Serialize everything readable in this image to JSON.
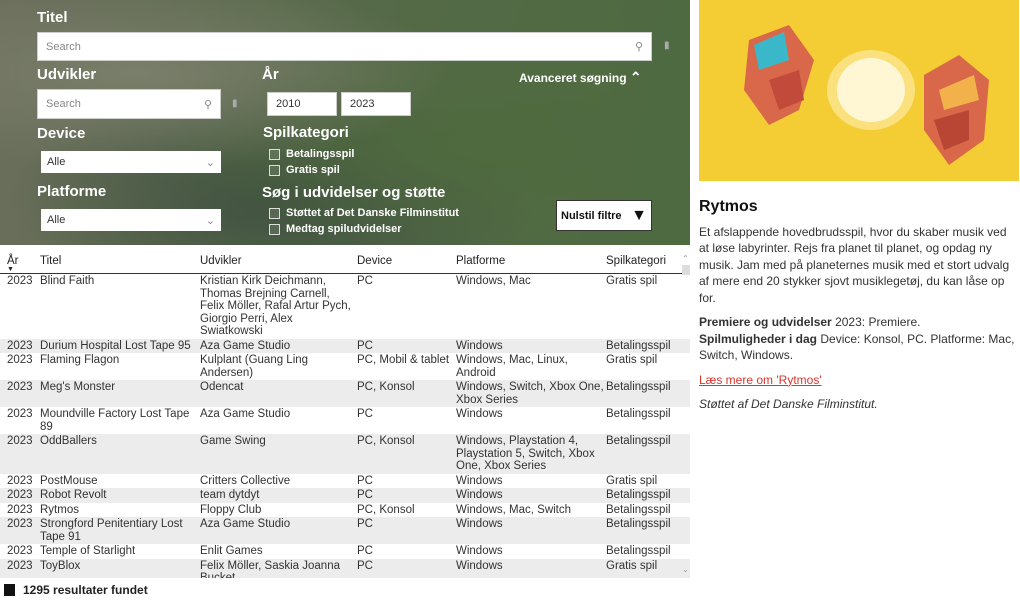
{
  "filters": {
    "title_label": "Titel",
    "title_placeholder": "Search",
    "developer_label": "Udvikler",
    "developer_placeholder": "Search",
    "year_label": "År",
    "year_from": "2010",
    "year_to": "2023",
    "advanced_label": "Avanceret søgning",
    "device_label": "Device",
    "device_value": "Alle",
    "platform_label": "Platforme",
    "platform_value": "Alle",
    "category_label": "Spilkategori",
    "category_options": [
      "Betalingsspil",
      "Gratis spil"
    ],
    "extras_label": "Søg i udvidelser og støtte",
    "extras_options": [
      "Støttet af Det Danske Filminstitut",
      "Medtag spiludvidelser"
    ],
    "reset_label": "Nulstil filtre"
  },
  "table": {
    "headers": [
      "År",
      "Titel",
      "Udvikler",
      "Device",
      "Platforme",
      "Spilkategori"
    ],
    "rows": [
      [
        "2023",
        "Blind Faith",
        "Kristian Kirk Deichmann, Thomas Brejning Carnell, Felix Möller, Rafal Artur Pych, Giorgio Perri, Alex Swiatkowski",
        "PC",
        "Windows, Mac",
        "Gratis spil"
      ],
      [
        "2023",
        "Durium Hospital Lost Tape 95",
        "Aza Game Studio",
        "PC",
        "Windows",
        "Betalingsspil"
      ],
      [
        "2023",
        "Flaming Flagon",
        "Kulplant (Guang Ling Andersen)",
        "PC, Mobil & tablet",
        "Windows, Mac, Linux, Android",
        "Gratis spil"
      ],
      [
        "2023",
        "Meg's Monster",
        "Odencat",
        "PC, Konsol",
        "Windows, Switch, Xbox One, Xbox Series",
        "Betalingsspil"
      ],
      [
        "2023",
        "Moundville Factory Lost Tape 89",
        "Aza Game Studio",
        "PC",
        "Windows",
        "Betalingsspil"
      ],
      [
        "2023",
        "OddBallers",
        "Game Swing",
        "PC, Konsol",
        "Windows, Playstation 4, Playstation 5, Switch, Xbox One, Xbox Series",
        "Betalingsspil"
      ],
      [
        "2023",
        "PostMouse",
        "Critters Collective",
        "PC",
        "Windows",
        "Gratis spil"
      ],
      [
        "2023",
        "Robot Revolt",
        "team dytdyt",
        "PC",
        "Windows",
        "Betalingsspil"
      ],
      [
        "2023",
        "Rytmos",
        "Floppy Club",
        "PC, Konsol",
        "Windows, Mac, Switch",
        "Betalingsspil"
      ],
      [
        "2023",
        "Strongford Penitentiary Lost Tape 91",
        "Aza Game Studio",
        "PC",
        "Windows",
        "Betalingsspil"
      ],
      [
        "2023",
        "Temple of Starlight",
        "Enlit Games",
        "PC",
        "Windows",
        "Betalingsspil"
      ],
      [
        "2023",
        "ToyBlox",
        "Felix Möller, Saskia Joanna Bucket",
        "PC",
        "Windows",
        "Gratis spil"
      ]
    ]
  },
  "footer": {
    "results": "1295 resultater fundet"
  },
  "detail": {
    "title": "Rytmos",
    "description": "Et afslappende hovedbrudsspil, hvor du skaber musik ved at løse labyrinter. Rejs fra planet til planet, og opdag ny musik. Jam med på planeternes musik med et stort udvalg af mere end 20 stykker sjovt musiklegetøj, du kan låse op for.",
    "premiere_label": "Premiere og udvidelser",
    "premiere_value": "2023: Premiere.",
    "options_label": "Spilmuligheder i dag",
    "options_value": "Device: Konsol, PC. Platforme: Mac, Switch, Windows.",
    "link": "Læs mere om 'Rytmos'",
    "support": "Støttet af Det Danske Filminstitut."
  },
  "colors": {
    "accent_link": "#d9352f",
    "art_bg": "#f4cd35"
  }
}
